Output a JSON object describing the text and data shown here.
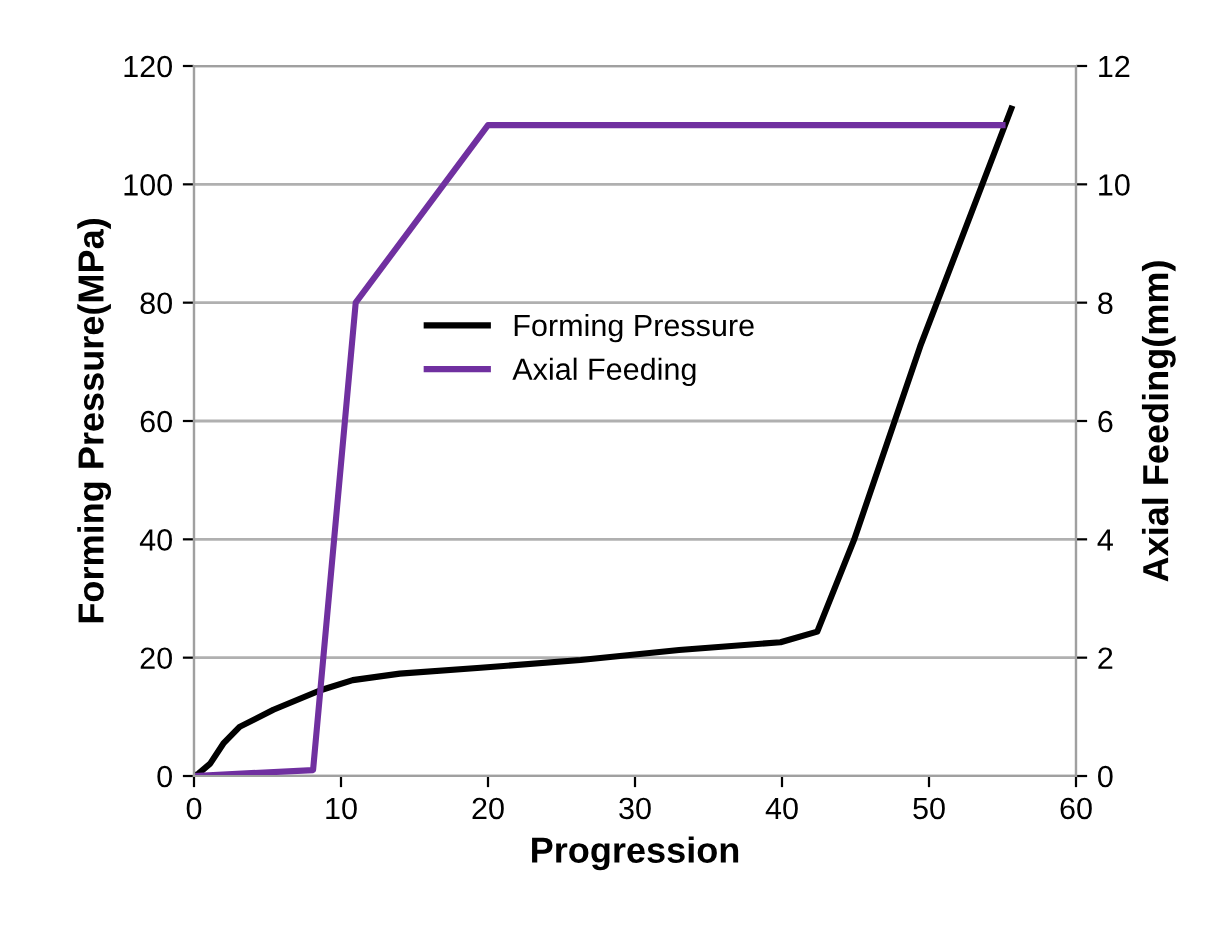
{
  "chart_data": {
    "type": "line",
    "xlabel": "Progression",
    "ylabel": "Forming Pressure(MPa)",
    "y2label": "Axial Feeding(mm)",
    "xlim": [
      0,
      60
    ],
    "xticks": [
      0,
      10,
      20,
      30,
      40,
      50,
      60
    ],
    "ylim": [
      0,
      120
    ],
    "yticks": [
      0,
      20,
      40,
      60,
      80,
      100,
      120
    ],
    "y2lim": [
      0,
      12
    ],
    "y2ticks": [
      0,
      2,
      4,
      6,
      8,
      10,
      12
    ],
    "grid": "y",
    "legend": "center",
    "marker": "none",
    "line_style": "solid",
    "series": [
      {
        "name": "Forming Pressure",
        "color": "#000000",
        "x": [
          0,
          0.3,
          1.1,
          2,
          3.1,
          5.4,
          8.6,
          10.8,
          14,
          19.5,
          26.3,
          33,
          39.9,
          42.4,
          44.9,
          49.4,
          55.6
        ],
        "values": [
          0,
          0.4,
          2.1,
          5.5,
          8.3,
          11.2,
          14.5,
          16.2,
          17.3,
          18.3,
          19.6,
          21.3,
          22.6,
          24.4,
          39.9,
          72.6,
          112.8
        ]
      },
      {
        "name": "Axial Feeding",
        "color": "#7030a0",
        "axis": "y2",
        "x": [
          0,
          8.1,
          11,
          20,
          55
        ],
        "values": [
          0,
          0.1,
          8,
          11,
          11
        ]
      }
    ]
  }
}
